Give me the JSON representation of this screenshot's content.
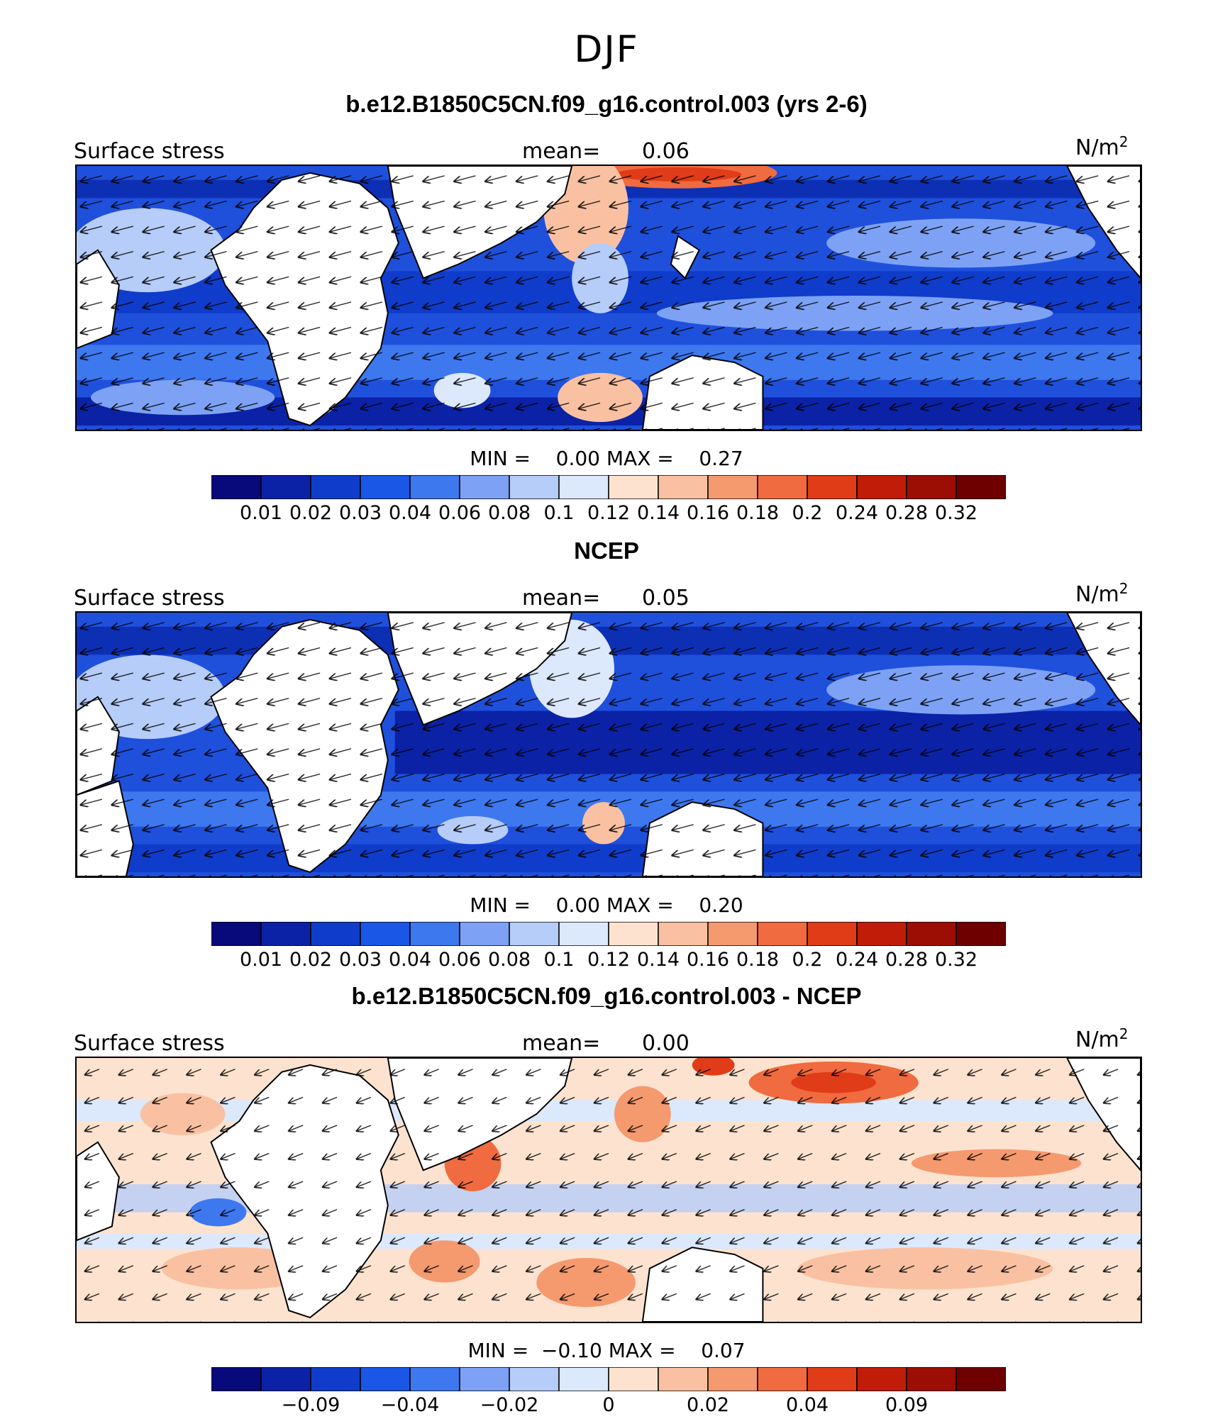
{
  "title": "DJF",
  "panels": [
    {
      "title": "b.e12.B1850C5CN.f09_g16.control.003 (yrs 2-6)",
      "left_label": "Surface stress",
      "mean_label": "mean=",
      "mean_value": "0.06",
      "unit": "N/m",
      "unit_sup": "2",
      "min_label": "MIN =",
      "min_value": "0.00",
      "max_label": "MAX =",
      "max_value": "0.27",
      "colorbar": [
        "#08097a",
        "#0b22a6",
        "#0f3cca",
        "#1a57e6",
        "#3e78ef",
        "#7da2f5",
        "#b6ccf9",
        "#dce8fc",
        "#fde3cf",
        "#f9c1a2",
        "#f5996f",
        "#f06b3f",
        "#e03c18",
        "#c01c08",
        "#9c0e04",
        "#6e0000"
      ],
      "ticks": [
        "0.01",
        "0.02",
        "0.03",
        "0.04",
        "0.06",
        "0.08",
        "0.1",
        "0.12",
        "0.14",
        "0.16",
        "0.18",
        "0.2",
        "0.24",
        "0.28",
        "0.32"
      ]
    },
    {
      "title": "NCEP",
      "left_label": "Surface stress",
      "mean_label": "mean=",
      "mean_value": "0.05",
      "unit": "N/m",
      "unit_sup": "2",
      "min_label": "MIN =",
      "min_value": "0.00",
      "max_label": "MAX =",
      "max_value": "0.20",
      "colorbar": [
        "#08097a",
        "#0b22a6",
        "#0f3cca",
        "#1a57e6",
        "#3e78ef",
        "#7da2f5",
        "#b6ccf9",
        "#dce8fc",
        "#fde3cf",
        "#f9c1a2",
        "#f5996f",
        "#f06b3f",
        "#e03c18",
        "#c01c08",
        "#9c0e04",
        "#6e0000"
      ],
      "ticks": [
        "0.01",
        "0.02",
        "0.03",
        "0.04",
        "0.06",
        "0.08",
        "0.1",
        "0.12",
        "0.14",
        "0.16",
        "0.18",
        "0.2",
        "0.24",
        "0.28",
        "0.32"
      ]
    },
    {
      "title": "b.e12.B1850C5CN.f09_g16.control.003 - NCEP",
      "left_label": "Surface stress",
      "mean_label": "mean=",
      "mean_value": "0.00",
      "unit": "N/m",
      "unit_sup": "2",
      "min_label": "MIN =",
      "min_value": "−0.10",
      "max_label": "MAX =",
      "max_value": "0.07",
      "colorbar": [
        "#08097a",
        "#0b22a6",
        "#0f3cca",
        "#1a57e6",
        "#3e78ef",
        "#7da2f5",
        "#b6ccf9",
        "#dce8fc",
        "#fde3cf",
        "#f9c1a2",
        "#f5996f",
        "#f06b3f",
        "#e03c18",
        "#c01c08",
        "#9c0e04",
        "#6e0000"
      ],
      "ticks": [
        "−0.09",
        "−0.04",
        "−0.02",
        "0",
        "0.02",
        "0.04",
        "0.09"
      ]
    }
  ]
}
